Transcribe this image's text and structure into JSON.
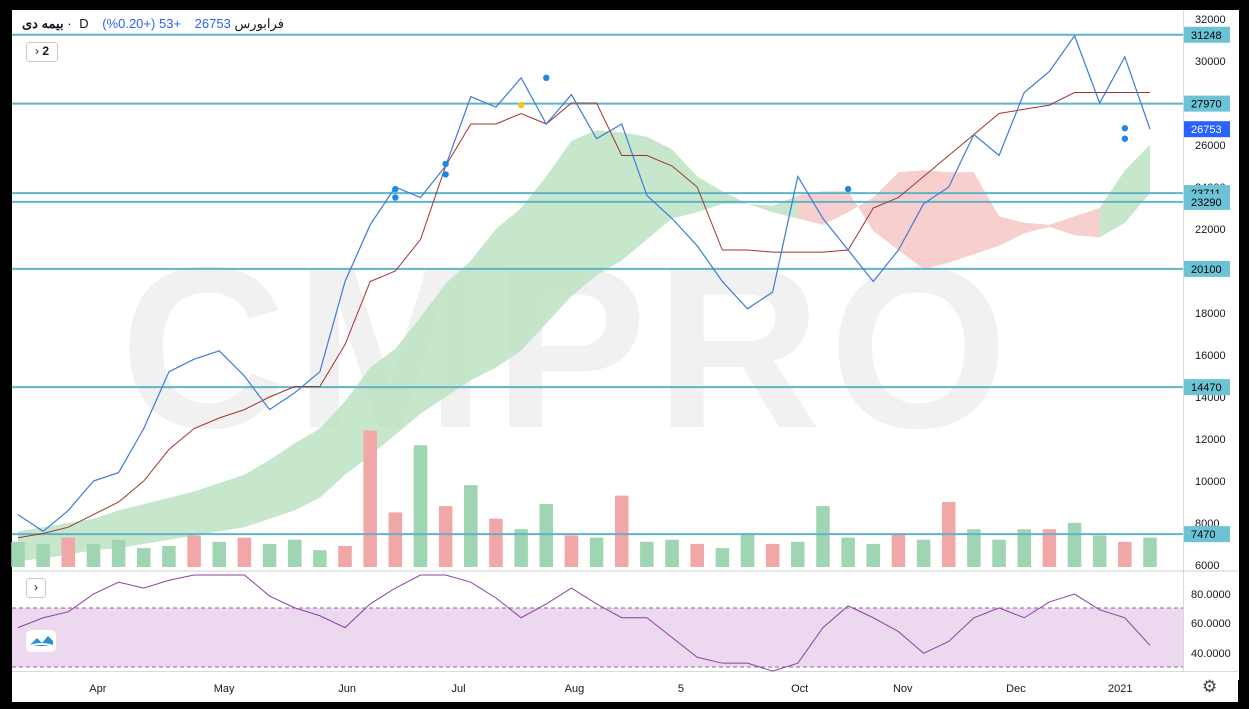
{
  "legend": {
    "symbol": "بیمه دی",
    "dot": "·",
    "interval": "D",
    "market": "فرابورس",
    "price": "26753",
    "change": "+53 (+0.20%)"
  },
  "watermark": "CMPRO",
  "controls": {
    "collapse_label": "2",
    "arrow_main": "›",
    "arrow_rsi": "›"
  },
  "colors": {
    "price_line": "#3d7bd9",
    "kijun_line": "#a3332e",
    "level_line": "#5fb4c9",
    "kumo_bull": "#bde3c3",
    "kumo_bear": "#f7c7c7",
    "vol_up": "#9fd5b3",
    "vol_down": "#f2a7a7",
    "rsi_line": "#8f3fa6",
    "rsi_band": "#ecd9f0",
    "marker_blue": "#1e88e5",
    "marker_yellow": "#f5c518"
  },
  "icons": {
    "settings": "gear-icon",
    "logo": "tradingview-logo-icon"
  },
  "chart_data": {
    "type": "line",
    "x": [
      "2020-03-01",
      "2020-03-08",
      "2020-03-15",
      "2020-03-22",
      "2020-03-29",
      "2020-04-05",
      "2020-04-12",
      "2020-04-19",
      "2020-04-26",
      "2020-05-03",
      "2020-05-10",
      "2020-05-17",
      "2020-05-24",
      "2020-05-31",
      "2020-06-07",
      "2020-06-14",
      "2020-06-21",
      "2020-06-28",
      "2020-07-05",
      "2020-07-12",
      "2020-07-19",
      "2020-07-26",
      "2020-08-02",
      "2020-08-09",
      "2020-08-16",
      "2020-08-23",
      "2020-08-30",
      "2020-09-06",
      "2020-09-13",
      "2020-09-20",
      "2020-09-27",
      "2020-10-04",
      "2020-10-11",
      "2020-10-18",
      "2020-10-25",
      "2020-11-01",
      "2020-11-08",
      "2020-11-15",
      "2020-11-22",
      "2020-11-29",
      "2020-12-06",
      "2020-12-13",
      "2020-12-20",
      "2020-12-27",
      "2021-01-03",
      "2021-01-10"
    ],
    "series": [
      {
        "values": [
          8400,
          7600,
          8600,
          10000,
          10400,
          12500,
          15200,
          15800,
          16200,
          15000,
          13400,
          14200,
          15200,
          19500,
          22200,
          24000,
          23500,
          25000,
          28300,
          27800,
          29200,
          27000,
          28400,
          26300,
          27000,
          23600,
          22500,
          21200,
          19500,
          18200,
          19000,
          24500,
          22500,
          21000,
          19500,
          21000,
          23200,
          24000,
          26500,
          25500,
          28500,
          29500,
          31200,
          28000,
          30200,
          26753
        ]
      },
      {
        "values": [
          7300,
          7500,
          7800,
          8400,
          9000,
          10000,
          11500,
          12500,
          13000,
          13400,
          14000,
          14500,
          14500,
          16500,
          19500,
          20000,
          21500,
          25000,
          27000,
          27000,
          27500,
          27000,
          28000,
          28000,
          25500,
          25500,
          25000,
          24000,
          21000,
          21000,
          20900,
          20900,
          20900,
          21000,
          23000,
          23500,
          24500,
          25500,
          26500,
          27500,
          27700,
          27900,
          28500,
          28500,
          28500,
          28500
        ]
      }
    ],
    "volume": [
      {
        "v": 1.2,
        "up": true
      },
      {
        "v": 1.1,
        "up": true
      },
      {
        "v": 1.4,
        "up": false
      },
      {
        "v": 1.1,
        "up": true
      },
      {
        "v": 1.3,
        "up": true
      },
      {
        "v": 0.9,
        "up": true
      },
      {
        "v": 1.0,
        "up": true
      },
      {
        "v": 1.5,
        "up": false
      },
      {
        "v": 1.2,
        "up": true
      },
      {
        "v": 1.4,
        "up": false
      },
      {
        "v": 1.1,
        "up": true
      },
      {
        "v": 1.3,
        "up": true
      },
      {
        "v": 0.8,
        "up": true
      },
      {
        "v": 1.0,
        "up": false
      },
      {
        "v": 6.5,
        "up": false
      },
      {
        "v": 2.6,
        "up": false
      },
      {
        "v": 5.8,
        "up": true
      },
      {
        "v": 2.9,
        "up": false
      },
      {
        "v": 3.9,
        "up": true
      },
      {
        "v": 2.3,
        "up": false
      },
      {
        "v": 1.8,
        "up": true
      },
      {
        "v": 3.0,
        "up": true
      },
      {
        "v": 1.5,
        "up": false
      },
      {
        "v": 1.4,
        "up": true
      },
      {
        "v": 3.4,
        "up": false
      },
      {
        "v": 1.2,
        "up": true
      },
      {
        "v": 1.3,
        "up": true
      },
      {
        "v": 1.1,
        "up": false
      },
      {
        "v": 0.9,
        "up": true
      },
      {
        "v": 1.6,
        "up": true
      },
      {
        "v": 1.1,
        "up": false
      },
      {
        "v": 1.2,
        "up": true
      },
      {
        "v": 2.9,
        "up": true
      },
      {
        "v": 1.4,
        "up": true
      },
      {
        "v": 1.1,
        "up": true
      },
      {
        "v": 1.6,
        "up": false
      },
      {
        "v": 1.3,
        "up": true
      },
      {
        "v": 3.1,
        "up": false
      },
      {
        "v": 1.8,
        "up": true
      },
      {
        "v": 1.3,
        "up": true
      },
      {
        "v": 1.8,
        "up": true
      },
      {
        "v": 1.8,
        "up": false
      },
      {
        "v": 2.1,
        "up": true
      },
      {
        "v": 1.5,
        "up": true
      },
      {
        "v": 1.2,
        "up": false
      },
      {
        "v": 1.4,
        "up": true
      }
    ],
    "kumo_top": [
      7600,
      7800,
      8000,
      8200,
      8600,
      8900,
      9200,
      9500,
      9900,
      10300,
      11000,
      11800,
      12500,
      13800,
      15400,
      16300,
      17800,
      19400,
      20500,
      22000,
      23000,
      24500,
      26200,
      26700,
      26600,
      26400,
      25800,
      24500,
      23800,
      23200,
      22800,
      22500,
      22200,
      22800,
      23500,
      24700,
      24800,
      24700,
      24700,
      22600,
      22300,
      22200,
      22600,
      23000,
      24800,
      26000
    ],
    "kumo_bottom": [
      6200,
      6300,
      6500,
      6700,
      6800,
      7000,
      7200,
      7400,
      7600,
      7800,
      8200,
      8600,
      9200,
      10300,
      11200,
      12200,
      13200,
      14000,
      14800,
      15400,
      16200,
      17500,
      18800,
      19800,
      20500,
      21500,
      22500,
      22800,
      23200,
      23200,
      23100,
      23600,
      23800,
      23800,
      21900,
      21000,
      20100,
      20400,
      20800,
      21200,
      21800,
      22100,
      21700,
      21600,
      22300,
      23700
    ],
    "kumo_bull": [
      true,
      true,
      true,
      true,
      true,
      true,
      true,
      true,
      true,
      true,
      true,
      true,
      true,
      true,
      true,
      true,
      true,
      true,
      true,
      true,
      true,
      true,
      true,
      true,
      true,
      true,
      true,
      true,
      true,
      true,
      true,
      false,
      false,
      false,
      false,
      false,
      false,
      false,
      false,
      false,
      false,
      false,
      false,
      true,
      true,
      true
    ],
    "rsi": [
      55,
      60,
      63,
      72,
      78,
      75,
      79,
      85,
      93,
      90,
      71,
      65,
      61,
      55,
      67,
      75,
      83,
      89,
      78,
      70,
      60,
      67,
      75,
      67,
      60,
      60,
      50,
      40,
      37,
      37,
      33,
      37,
      55,
      66,
      60,
      53,
      42,
      48,
      60,
      65,
      60,
      68,
      72,
      64,
      60,
      46
    ],
    "rsi_levels": [
      70,
      30
    ],
    "price_levels": [
      "31248",
      "27970",
      "23711",
      "23290",
      "20100",
      "14470",
      "7470"
    ],
    "price_axis": [
      "32000",
      "30000",
      "26000",
      "24000",
      "22000",
      "20000",
      "18000",
      "16000",
      "14000",
      "12000",
      "10000",
      "8000",
      "6000"
    ],
    "rsi_axis": [
      "80.0000",
      "60.0000",
      "40.0000"
    ],
    "time_axis": [
      "Apr",
      "May",
      "Jun",
      "Jul",
      "Aug",
      "5",
      "Oct",
      "Nov",
      "Dec",
      "2021"
    ],
    "markers_blue": [
      [
        15,
        23900
      ],
      [
        15,
        23500
      ],
      [
        17,
        25100
      ],
      [
        17,
        24600
      ],
      [
        21,
        29200
      ],
      [
        33,
        23900
      ],
      [
        44,
        26800
      ],
      [
        44,
        26300
      ]
    ],
    "markers_yellow": [
      [
        20,
        27900
      ]
    ],
    "last_price": "26753",
    "ylim": [
      6000,
      32600
    ],
    "rsi_ylim": [
      0,
      100
    ]
  }
}
